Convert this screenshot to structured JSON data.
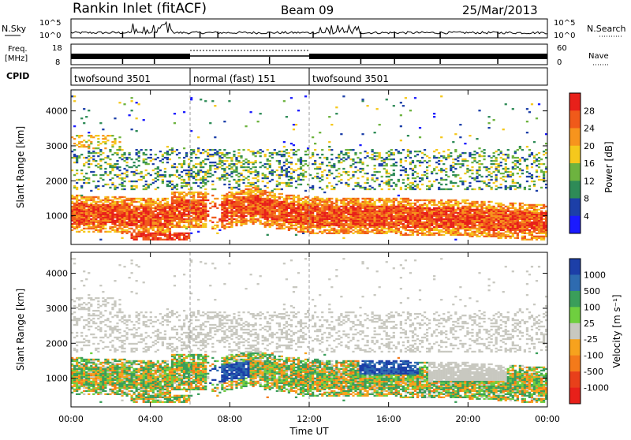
{
  "header": {
    "title": "Rankin Inlet (fitACF)",
    "beam": "Beam 09",
    "date": "25/Mar/2013"
  },
  "strip": {
    "nsky_label": "N.Sky",
    "nsearch_label": "N.Search",
    "nsky_ticks": [
      "10^5",
      "10^0"
    ],
    "nsearch_ticks": [
      "10^5",
      "10^0"
    ],
    "freq_label_1": "Freq.",
    "freq_label_2": "[MHz]",
    "freq_ticks": [
      "18",
      "8"
    ],
    "nave_label": "Nave",
    "nave_ticks": [
      "60",
      "0"
    ],
    "cpid_label": "CPID",
    "cpid_segments": [
      {
        "label": "twofsound 3501",
        "start": 0,
        "end": 6
      },
      {
        "label": "normal (fast) 151",
        "start": 6,
        "end": 12
      },
      {
        "label": "twofsound 3501",
        "start": 12,
        "end": 24
      }
    ]
  },
  "chart_data": [
    {
      "type": "heatmap",
      "name": "power",
      "xlabel": "",
      "ylabel": "Slant Range [km]",
      "xlim": [
        0,
        24
      ],
      "ylim": [
        180,
        4600
      ],
      "yticks": [
        1000,
        2000,
        3000,
        4000
      ],
      "colorbar_label": "Power [dB]",
      "colorbar_ticks": [
        "28",
        "24",
        "20",
        "16",
        "12",
        "8",
        "4"
      ],
      "colorbar_colors": [
        "#e8201a",
        "#f05a1a",
        "#f7941d",
        "#f5c81c",
        "#6db33f",
        "#2e8b57",
        "#1c3fa8",
        "#1a1aff"
      ],
      "echo_bands_description": "dense ionospheric scatter between ~600 and ~1600 km for the full day; sparser echoes 1800-3000 km"
    },
    {
      "type": "heatmap",
      "name": "velocity",
      "xlabel": "Time UT",
      "ylabel": "Slant Range [km]",
      "xlim": [
        0,
        24
      ],
      "ylim": [
        180,
        4600
      ],
      "yticks": [
        1000,
        2000,
        3000,
        4000
      ],
      "xticks": [
        "00:00",
        "04:00",
        "08:00",
        "12:00",
        "16:00",
        "20:00",
        "00:00"
      ],
      "colorbar_label": "Velocity [m s⁻¹]",
      "colorbar_ticks": [
        "1000",
        "500",
        "100",
        "25",
        "-25",
        "-100",
        "-500",
        "-1000"
      ],
      "colorbar_colors": [
        "#1c3fa8",
        "#2e6bb0",
        "#3a9e5a",
        "#6fcf3f",
        "#c8c8c0",
        "#f7a21d",
        "#f47a1a",
        "#e8401a",
        "#e8201a"
      ]
    }
  ],
  "axes": {
    "xticks": [
      "00:00",
      "04:00",
      "08:00",
      "12:00",
      "16:00",
      "20:00",
      "00:00"
    ],
    "xlabel": "Time UT"
  }
}
